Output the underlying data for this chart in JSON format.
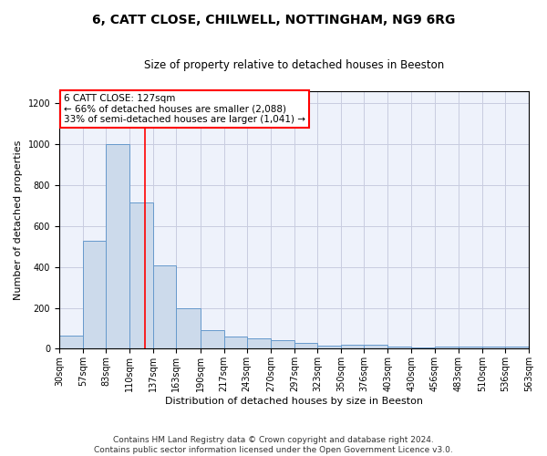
{
  "title": "6, CATT CLOSE, CHILWELL, NOTTINGHAM, NG9 6RG",
  "subtitle": "Size of property relative to detached houses in Beeston",
  "xlabel": "Distribution of detached houses by size in Beeston",
  "ylabel": "Number of detached properties",
  "bar_color": "#ccdaeb",
  "bar_edge_color": "#6699cc",
  "background_color": "#eef2fb",
  "grid_color": "#c8cce0",
  "annotation_text": "6 CATT CLOSE: 127sqm\n← 66% of detached houses are smaller (2,088)\n33% of semi-detached houses are larger (1,041) →",
  "vline_x": 127,
  "vline_color": "red",
  "bins": [
    30,
    57,
    83,
    110,
    137,
    163,
    190,
    217,
    243,
    270,
    297,
    323,
    350,
    376,
    403,
    430,
    456,
    483,
    510,
    536,
    563
  ],
  "values": [
    65,
    530,
    1000,
    715,
    410,
    200,
    90,
    60,
    50,
    40,
    30,
    15,
    20,
    20,
    10,
    5,
    10,
    10,
    10,
    10
  ],
  "ylim": [
    0,
    1260
  ],
  "yticks": [
    0,
    200,
    400,
    600,
    800,
    1000,
    1200
  ],
  "footer": "Contains HM Land Registry data © Crown copyright and database right 2024.\nContains public sector information licensed under the Open Government Licence v3.0.",
  "footer_fontsize": 6.5,
  "title_fontsize": 10,
  "subtitle_fontsize": 8.5,
  "xlabel_fontsize": 8,
  "ylabel_fontsize": 8,
  "tick_fontsize": 7,
  "annotation_fontsize": 7.5,
  "annotation_box_color": "white",
  "annotation_box_edge": "red"
}
